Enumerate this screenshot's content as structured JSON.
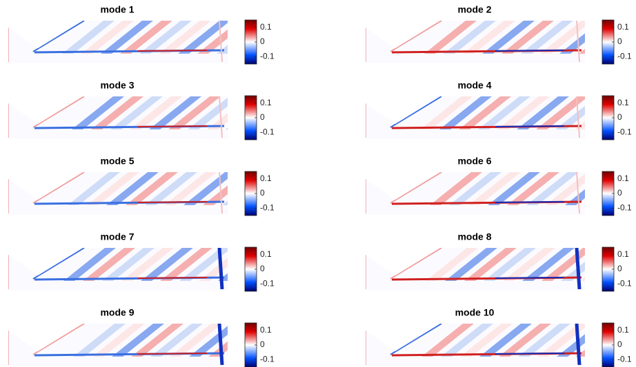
{
  "chart_data": [
    {
      "type": "heatmap",
      "title": "mode 1",
      "clim": [
        -0.15,
        0.15
      ],
      "cticks": [
        0.1,
        0,
        -0.1
      ]
    },
    {
      "type": "heatmap",
      "title": "mode 2",
      "clim": [
        -0.15,
        0.15
      ],
      "cticks": [
        0.1,
        0,
        -0.1
      ]
    },
    {
      "type": "heatmap",
      "title": "mode 3",
      "clim": [
        -0.15,
        0.15
      ],
      "cticks": [
        0.1,
        0,
        -0.1
      ]
    },
    {
      "type": "heatmap",
      "title": "mode 4",
      "clim": [
        -0.15,
        0.15
      ],
      "cticks": [
        0.1,
        0,
        -0.1
      ]
    },
    {
      "type": "heatmap",
      "title": "mode 5",
      "clim": [
        -0.15,
        0.15
      ],
      "cticks": [
        0.1,
        0,
        -0.1
      ]
    },
    {
      "type": "heatmap",
      "title": "mode 6",
      "clim": [
        -0.15,
        0.15
      ],
      "cticks": [
        0.1,
        0,
        -0.1
      ]
    },
    {
      "type": "heatmap",
      "title": "mode 7",
      "clim": [
        -0.15,
        0.15
      ],
      "cticks": [
        0.1,
        0,
        -0.1
      ]
    },
    {
      "type": "heatmap",
      "title": "mode 8",
      "clim": [
        -0.15,
        0.15
      ],
      "cticks": [
        0.1,
        0,
        -0.1
      ]
    },
    {
      "type": "heatmap",
      "title": "mode 9",
      "clim": [
        -0.15,
        0.15
      ],
      "cticks": [
        0.1,
        0,
        -0.1
      ]
    },
    {
      "type": "heatmap",
      "title": "mode 10",
      "clim": [
        -0.15,
        0.15
      ],
      "cticks": [
        0.1,
        0,
        -0.1
      ]
    }
  ]
}
